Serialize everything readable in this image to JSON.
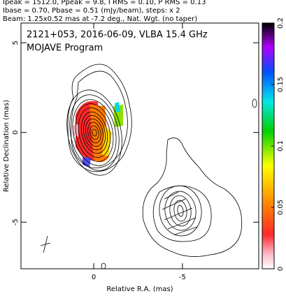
{
  "chart_data": {
    "type": "contour",
    "annotations": [
      "Ipeak = 1512.0, Ppeak = 9.8, I RMS = 0.10, P RMS = 0.13",
      "Ibase = 0.70, Pbase = 0.51 (mJy/beam), steps: x 2",
      "Beam: 1.25x0.52 mas at -7.2 deg., Nat. Wgt. (no taper)"
    ],
    "title": "2121+053, 2016-06-09, VLBA 15.4 GHz",
    "subtitle": "MOJAVE Program",
    "x_label": "Relative R.A. (mas)",
    "y_label": "Relative Declination (mas)",
    "xlim": [
      4.1,
      -9.3
    ],
    "ylim": [
      -7.6,
      6.1
    ],
    "xticks": [
      0,
      -5
    ],
    "yticks": [
      -5,
      0,
      5
    ],
    "colorbar": {
      "lim": [
        0,
        0.2
      ],
      "ticks": [
        0,
        0.05,
        0.1,
        0.15,
        0.2
      ]
    }
  }
}
